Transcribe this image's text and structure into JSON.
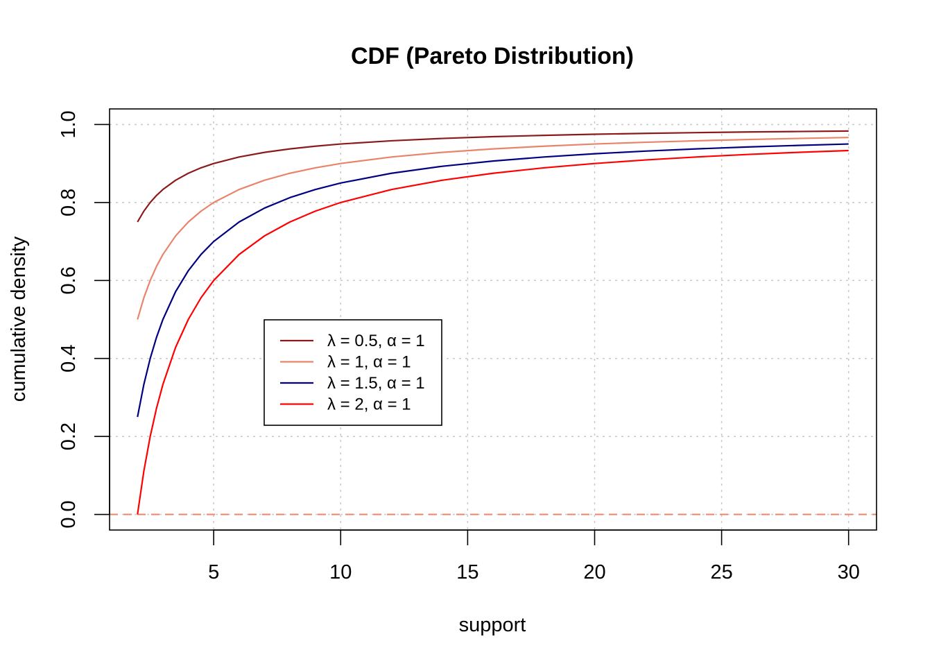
{
  "chart_data": {
    "type": "line",
    "title": "CDF (Pareto Distribution)",
    "xlabel": "support",
    "ylabel": "cumulative density",
    "xlim": [
      0.9,
      31.1
    ],
    "ylim": [
      -0.04,
      1.04
    ],
    "x_ticks": [
      5,
      10,
      15,
      20,
      25,
      30
    ],
    "x_tick_labels": [
      "5",
      "10",
      "15",
      "20",
      "25",
      "30"
    ],
    "y_ticks": [
      0,
      0.2,
      0.4,
      0.6,
      0.8,
      1
    ],
    "y_tick_labels": [
      "0.0",
      "0.2",
      "0.4",
      "0.6",
      "0.8",
      "1.0"
    ],
    "grid": true,
    "x": [
      2,
      2.25,
      2.5,
      2.75,
      3,
      3.5,
      4,
      4.5,
      5,
      6,
      7,
      8,
      9,
      10,
      12,
      14,
      16,
      18,
      20,
      22,
      24,
      26,
      28,
      30
    ],
    "series": [
      {
        "name": "λ = 0.5, α = 1",
        "color": "#8B1A1A",
        "values": [
          0.75,
          0.7778,
          0.8,
          0.8182,
          0.8333,
          0.8571,
          0.875,
          0.8889,
          0.9,
          0.9167,
          0.9286,
          0.9375,
          0.9444,
          0.95,
          0.9583,
          0.9643,
          0.9688,
          0.9722,
          0.975,
          0.9773,
          0.9792,
          0.9808,
          0.9821,
          0.9833
        ]
      },
      {
        "name": "λ = 1, α = 1",
        "color": "#E9836A",
        "values": [
          0.5,
          0.5556,
          0.6,
          0.6364,
          0.6667,
          0.7143,
          0.75,
          0.7778,
          0.8,
          0.8333,
          0.8571,
          0.875,
          0.8889,
          0.9,
          0.9167,
          0.9286,
          0.9375,
          0.9444,
          0.95,
          0.9545,
          0.9583,
          0.9615,
          0.9643,
          0.9667
        ]
      },
      {
        "name": "λ = 1.5, α = 1",
        "color": "#000080",
        "values": [
          0.25,
          0.3333,
          0.4,
          0.4545,
          0.5,
          0.5714,
          0.625,
          0.6667,
          0.7,
          0.75,
          0.7857,
          0.8125,
          0.8333,
          0.85,
          0.875,
          0.8929,
          0.9063,
          0.9167,
          0.925,
          0.9318,
          0.9375,
          0.9423,
          0.9464,
          0.95
        ]
      },
      {
        "name": "λ = 2, α = 1",
        "color": "#FF0000",
        "values": [
          0,
          0.1111,
          0.2,
          0.2727,
          0.3333,
          0.4286,
          0.5,
          0.5556,
          0.6,
          0.6667,
          0.7143,
          0.75,
          0.7778,
          0.8,
          0.8333,
          0.8571,
          0.875,
          0.8889,
          0.9,
          0.9091,
          0.9167,
          0.9231,
          0.9286,
          0.9333
        ]
      }
    ],
    "reference_line": {
      "y": 0,
      "color": "#E9836A",
      "style": "dashed"
    },
    "legend_placement": "center-left"
  }
}
